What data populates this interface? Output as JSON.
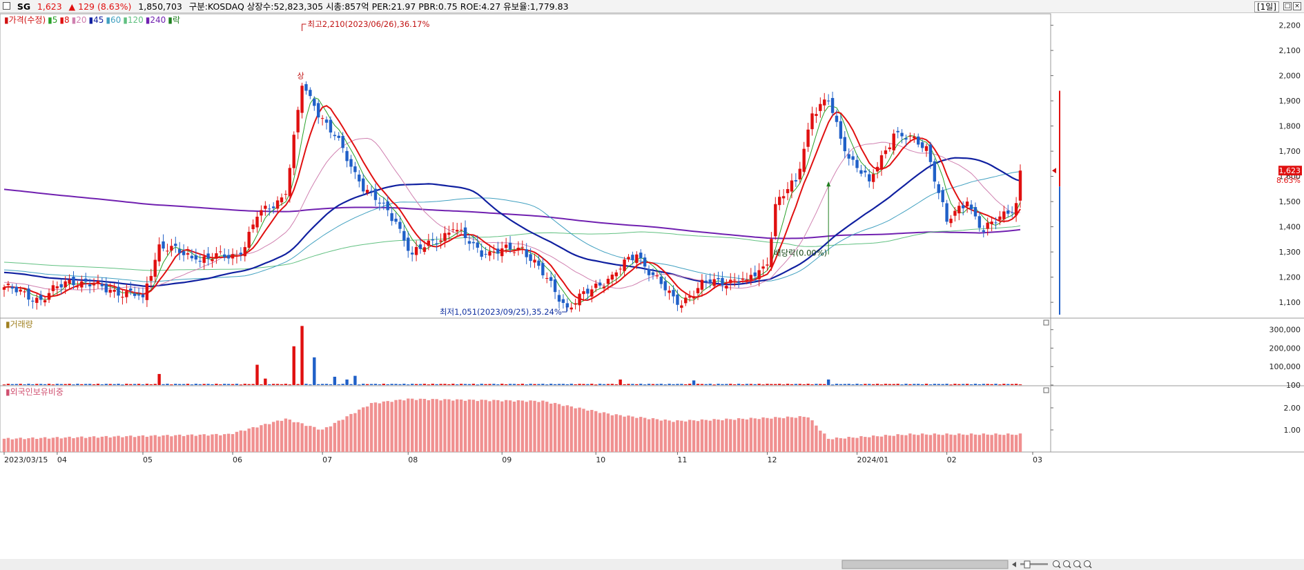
{
  "topbar": {
    "symbol": "SG",
    "price": "1,623",
    "change": "▲ 129 (8.63%)",
    "volume": "1,850,703",
    "info": "구분:KOSDAQ 상장수:52,823,305 시총:857억 PER:21.97 PBR:0.75 ROE:4.27 유보율:1,779.83",
    "period": "[1일]"
  },
  "legend": {
    "items": [
      {
        "label": "가격(수정)",
        "color": "#d01010"
      },
      {
        "label": "5",
        "color": "#28a028"
      },
      {
        "label": "8",
        "color": "#e01010"
      },
      {
        "label": "20",
        "color": "#d080b0"
      },
      {
        "label": "45",
        "color": "#1020a0"
      },
      {
        "label": "60",
        "color": "#40a0c0"
      },
      {
        "label": "120",
        "color": "#60c080"
      },
      {
        "label": "240",
        "color": "#7020b0"
      },
      {
        "label": "락",
        "color": "#208020"
      }
    ]
  },
  "annotations": {
    "high": "최고2,210(2023/06/26),36.17%",
    "low": "최저1,051(2023/09/25),35.24%",
    "dividend": "배당락(0.00%)",
    "upper_limit": "상",
    "last_price": "1,623",
    "last_change": "8.63%"
  },
  "panels": {
    "volume_title": "거래량",
    "foreign_title": "외국인보유비중"
  },
  "colors": {
    "up": "#e01010",
    "down": "#2060c8",
    "foreign_bar": "#f09090"
  },
  "chart_data": {
    "type": "candlestick",
    "date_range": [
      "2023/03/15",
      "2024/02/27"
    ],
    "x_ticks": [
      "2023/03/15",
      "04",
      "05",
      "06",
      "07",
      "08",
      "09",
      "10",
      "11",
      "12",
      "2024/01",
      "02",
      "03"
    ],
    "price_axis": {
      "ticks": [
        "2,200",
        "2,100",
        "2,000",
        "1,900",
        "1,800",
        "1,700",
        "1,600",
        "1,500",
        "1,400",
        "1,300",
        "1,200",
        "1,100"
      ],
      "range": [
        1040,
        2240
      ]
    },
    "volume_axis": {
      "ticks": [
        "300,000",
        "200,000",
        "100,000",
        "100"
      ],
      "range": [
        0,
        340000
      ]
    },
    "foreign_axis": {
      "ticks": [
        "2.00",
        "1.00"
      ],
      "range": [
        0,
        3.0
      ]
    },
    "price_keypoints": [
      {
        "date": "2023/03/15",
        "close": 1160
      },
      {
        "date": "2023/03/28",
        "close": 1110
      },
      {
        "date": "2023/04/06",
        "close": 1190
      },
      {
        "date": "2023/04/20",
        "close": 1150
      },
      {
        "date": "2023/05/02",
        "close": 1120
      },
      {
        "date": "2023/05/08",
        "close": 1330
      },
      {
        "date": "2023/05/20",
        "close": 1270
      },
      {
        "date": "2023/06/05",
        "close": 1290
      },
      {
        "date": "2023/06/09",
        "close": 1440
      },
      {
        "date": "2023/06/20",
        "close": 1530
      },
      {
        "date": "2023/06/26",
        "close": 1960
      },
      {
        "date": "2023/06/29",
        "close": 1880
      },
      {
        "date": "2023/07/06",
        "close": 1760
      },
      {
        "date": "2023/07/14",
        "close": 1580
      },
      {
        "date": "2023/07/27",
        "close": 1420
      },
      {
        "date": "2023/08/02",
        "close": 1290
      },
      {
        "date": "2023/08/16",
        "close": 1390
      },
      {
        "date": "2023/08/28",
        "close": 1290
      },
      {
        "date": "2023/09/08",
        "close": 1320
      },
      {
        "date": "2023/09/25",
        "close": 1080
      },
      {
        "date": "2023/10/10",
        "close": 1210
      },
      {
        "date": "2023/10/18",
        "close": 1290
      },
      {
        "date": "2023/11/01",
        "close": 1090
      },
      {
        "date": "2023/11/10",
        "close": 1180
      },
      {
        "date": "2023/11/24",
        "close": 1190
      },
      {
        "date": "2023/12/01",
        "close": 1250
      },
      {
        "date": "2023/12/05",
        "close": 1490
      },
      {
        "date": "2023/12/12",
        "close": 1580
      },
      {
        "date": "2023/12/18",
        "close": 1850
      },
      {
        "date": "2023/12/22",
        "close": 1900
      },
      {
        "date": "2023/12/28",
        "close": 1700
      },
      {
        "date": "2024/01/05",
        "close": 1580
      },
      {
        "date": "2024/01/15",
        "close": 1770
      },
      {
        "date": "2024/01/25",
        "close": 1720
      },
      {
        "date": "2024/02/01",
        "close": 1420
      },
      {
        "date": "2024/02/08",
        "close": 1500
      },
      {
        "date": "2024/02/14",
        "close": 1380
      },
      {
        "date": "2024/02/26",
        "close": 1494
      },
      {
        "date": "2024/02/27",
        "close": 1623
      }
    ],
    "volume_spikes": [
      {
        "date": "2023/05/08",
        "value": 60000
      },
      {
        "date": "2023/06/09",
        "value": 110000
      },
      {
        "date": "2023/06/13",
        "value": 35000
      },
      {
        "date": "2023/06/22",
        "value": 210000
      },
      {
        "date": "2023/06/26",
        "value": 320000
      },
      {
        "date": "2023/06/29",
        "value": 150000
      },
      {
        "date": "2023/07/06",
        "value": 45000
      },
      {
        "date": "2023/07/11",
        "value": 30000
      },
      {
        "date": "2023/07/13",
        "value": 50000
      },
      {
        "date": "2023/10/12",
        "value": 30000
      },
      {
        "date": "2023/11/07",
        "value": 25000
      },
      {
        "date": "2023/12/22",
        "value": 30000
      }
    ],
    "foreign_keypoints": [
      {
        "date": "2023/03/15",
        "value": 0.6
      },
      {
        "date": "2023/05/31",
        "value": 0.8
      },
      {
        "date": "2023/06/20",
        "value": 1.5
      },
      {
        "date": "2023/07/03",
        "value": 1.0
      },
      {
        "date": "2023/07/19",
        "value": 2.2
      },
      {
        "date": "2023/08/01",
        "value": 2.4
      },
      {
        "date": "2023/09/15",
        "value": 2.3
      },
      {
        "date": "2023/10/10",
        "value": 1.7
      },
      {
        "date": "2023/10/31",
        "value": 1.4
      },
      {
        "date": "2023/12/15",
        "value": 1.6
      },
      {
        "date": "2023/12/22",
        "value": 0.6
      },
      {
        "date": "2024/01/20",
        "value": 0.8
      },
      {
        "date": "2024/02/27",
        "value": 0.8
      }
    ]
  }
}
